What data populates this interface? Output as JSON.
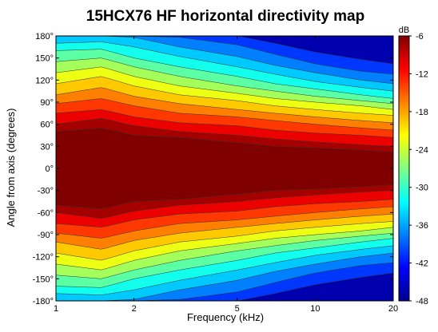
{
  "chart_data": {
    "type": "heatmap",
    "title": "15HCX76 HF horizontal directivity map",
    "xlabel": "Frequency (kHz)",
    "ylabel": "Angle from axis (degrees)",
    "x_scale": "log",
    "xlim": [
      1,
      20
    ],
    "ylim": [
      -180,
      180
    ],
    "x_ticks": [
      1,
      2,
      5,
      10,
      20
    ],
    "x_tick_labels": [
      "1",
      "2",
      "5",
      "10",
      "20"
    ],
    "y_ticks": [
      180,
      150,
      120,
      90,
      60,
      30,
      0,
      -30,
      -60,
      -90,
      -120,
      -150,
      -180
    ],
    "y_tick_labels": [
      "180°",
      "150°",
      "120°",
      "90°",
      "60°",
      "30°",
      "0°",
      "-30°",
      "-60°",
      "-90°",
      "-120°",
      "-150°",
      "-180°"
    ],
    "colorbar": {
      "label": "dB",
      "range": [
        -48,
        -6
      ],
      "ticks": [
        -6,
        -12,
        -18,
        -24,
        -30,
        -36,
        -42,
        -48
      ],
      "tick_labels": [
        "-6",
        "-12",
        "-18",
        "-24",
        "-30",
        "-36",
        "-42",
        "-48"
      ],
      "contour_step_db": 3,
      "colormap": "jet",
      "stops": [
        "#00008f",
        "#0000ff",
        "#0080ff",
        "#00ffff",
        "#80ff80",
        "#ffff00",
        "#ff8000",
        "#ff0000",
        "#800000"
      ]
    },
    "contour_boundaries": {
      "angles": [
        0,
        30,
        60,
        90,
        120,
        150,
        180
      ],
      "frequencies_khz": [
        1,
        1.5,
        2,
        3,
        5,
        7,
        10,
        15,
        20
      ],
      "levels_db": [
        -6,
        -9,
        -12,
        -15,
        -18,
        -21,
        -24,
        -27,
        -30,
        -33,
        -36,
        -39,
        -42
      ],
      "angle_at_level": [
        [
          50,
          55,
          45,
          42,
          35,
          30,
          28,
          25,
          22
        ],
        [
          60,
          68,
          58,
          50,
          45,
          40,
          36,
          32,
          30
        ],
        [
          75,
          80,
          70,
          62,
          58,
          52,
          48,
          45,
          42
        ],
        [
          88,
          95,
          85,
          75,
          70,
          65,
          60,
          55,
          52
        ],
        [
          100,
          110,
          98,
          88,
          80,
          75,
          70,
          65,
          62
        ],
        [
          115,
          125,
          112,
          100,
          92,
          85,
          80,
          75,
          72
        ],
        [
          130,
          138,
          125,
          112,
          102,
          95,
          90,
          85,
          80
        ],
        [
          145,
          150,
          138,
          125,
          112,
          105,
          98,
          92,
          88
        ],
        [
          160,
          162,
          150,
          138,
          125,
          115,
          108,
          100,
          95
        ],
        [
          170,
          172,
          165,
          152,
          138,
          128,
          118,
          110,
          105
        ],
        [
          180,
          180,
          178,
          165,
          152,
          140,
          130,
          120,
          115
        ],
        [
          180,
          180,
          180,
          178,
          168,
          155,
          142,
          132,
          128
        ],
        [
          180,
          180,
          180,
          180,
          180,
          170,
          158,
          148,
          142
        ]
      ]
    }
  }
}
